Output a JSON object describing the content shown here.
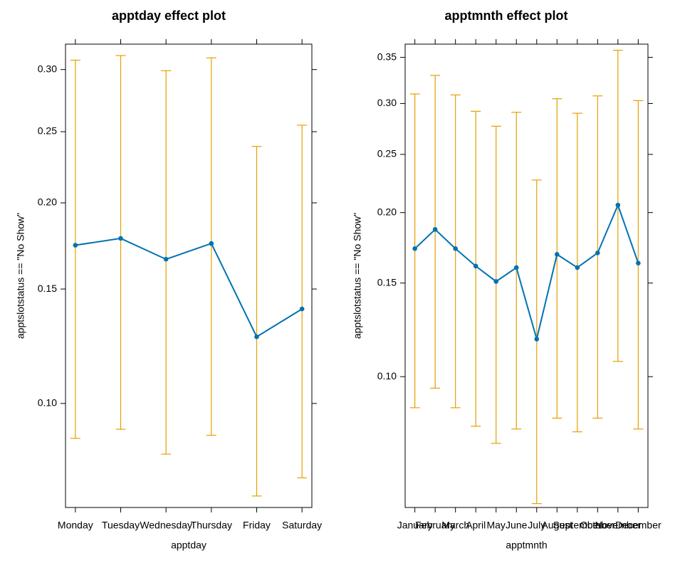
{
  "colors": {
    "line": "#0072B2",
    "error_bar": "#E69F00",
    "frame": "#000000"
  },
  "chart_data": [
    {
      "type": "line",
      "title": "apptday effect plot",
      "xlabel": "apptday",
      "ylabel": "apptslotstatus == \"No Show\"",
      "scale": "logit",
      "categories": [
        "Monday",
        "Tuesday",
        "Wednesday",
        "Thursday",
        "Friday",
        "Saturday"
      ],
      "values": [
        0.174,
        0.178,
        0.166,
        0.175,
        0.127,
        0.14
      ],
      "lower": [
        0.088,
        0.091,
        0.083,
        0.089,
        0.071,
        0.076
      ],
      "upper": [
        0.308,
        0.312,
        0.299,
        0.31,
        0.239,
        0.255
      ],
      "yticks": [
        0.1,
        0.15,
        0.2,
        0.25,
        0.3
      ],
      "ytick_labels": [
        "0.10",
        "0.15",
        "0.20",
        "0.25",
        "0.30"
      ],
      "ylim": [
        0.068,
        0.322
      ],
      "grid": false
    },
    {
      "type": "line",
      "title": "apptmnth effect plot",
      "xlabel": "apptmnth",
      "ylabel": "apptslotstatus == \"No Show\"",
      "scale": "logit",
      "categories": [
        "January",
        "February",
        "March",
        "April",
        "May",
        "June",
        "July",
        "August",
        "September",
        "October",
        "November",
        "December"
      ],
      "values": [
        0.173,
        0.187,
        0.173,
        0.161,
        0.151,
        0.16,
        0.118,
        0.169,
        0.16,
        0.17,
        0.206,
        0.163
      ],
      "lower": [
        0.087,
        0.095,
        0.087,
        0.08,
        0.074,
        0.079,
        0.056,
        0.083,
        0.078,
        0.083,
        0.107,
        0.079
      ],
      "upper": [
        0.31,
        0.33,
        0.309,
        0.292,
        0.277,
        0.291,
        0.227,
        0.305,
        0.29,
        0.308,
        0.358,
        0.303
      ],
      "yticks": [
        0.1,
        0.15,
        0.2,
        0.25,
        0.3,
        0.35
      ],
      "ytick_labels": [
        "0.10",
        "0.15",
        "0.20",
        "0.25",
        "0.30",
        "0.35"
      ],
      "ylim": [
        0.055,
        0.365
      ],
      "grid": false
    }
  ]
}
